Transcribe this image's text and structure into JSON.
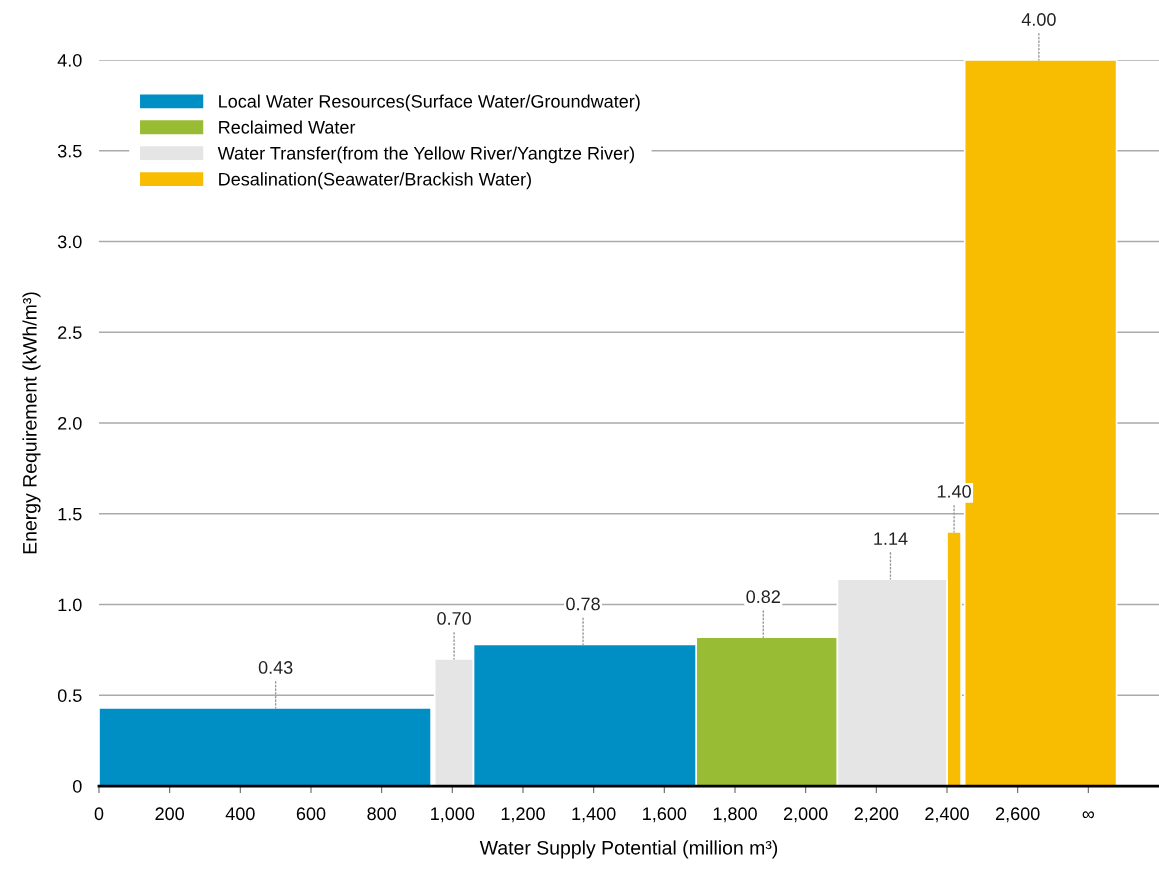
{
  "chart_data": {
    "type": "area",
    "xlabel": "Water Supply Potential (million m³)",
    "ylabel": "Energy Requirement (kWh/m³)",
    "series": [
      {
        "name": "Local Water Resources(Surface Water/Groundwater)",
        "color": "#008fc4",
        "x": [
          0,
          940
        ],
        "values": [
          0.43,
          0.43
        ]
      },
      {
        "name": "Reclaimed Water",
        "color": "#98bd35",
        "x": [
          1690,
          2090
        ],
        "values": [
          0.82,
          0.82
        ]
      },
      {
        "name": "Water Transfer(from the Yellow River/Yangtze River)",
        "color": "#e5e5e5",
        "x": [
          950,
          1060
        ],
        "values": [
          0.7,
          0.7
        ]
      },
      {
        "name": "Desalination(Seawater/Brackish Water)",
        "color": "#f8bd00",
        "x": [
          2400,
          2440
        ],
        "values": [
          1.4,
          1.4
        ]
      },
      {
        "color": "#008fc4",
        "x": [
          1060,
          1690
        ],
        "values": [
          0.78,
          0.78
        ]
      },
      {
        "color": "#e5e5e5",
        "x": [
          2090,
          2400
        ],
        "values": [
          1.14,
          1.14
        ]
      },
      {
        "color": "#f8bd00",
        "x": [
          2450,
          2880
        ],
        "values": [
          4.0,
          4.0
        ]
      }
    ],
    "annotations": [
      {
        "text": "0.43",
        "x": 500,
        "y": 0.43
      },
      {
        "text": "0.70",
        "x": 1005,
        "y": 0.7
      },
      {
        "text": "0.78",
        "x": 1370,
        "y": 0.78
      },
      {
        "text": "0.82",
        "x": 1880,
        "y": 0.82
      },
      {
        "text": "1.14",
        "x": 2240,
        "y": 1.14
      },
      {
        "text": "1.40",
        "x": 2420,
        "y": 1.4
      },
      {
        "text": "4.00",
        "x": 2660,
        "y": 4.0
      }
    ],
    "xlim": [
      0,
      3000
    ],
    "xticks": [
      0,
      200,
      400,
      600,
      800,
      {
        "value": 1000,
        "label": "1,000"
      },
      {
        "value": 1200,
        "label": "1,200"
      },
      {
        "value": 1400,
        "label": "1,400"
      },
      {
        "value": 1600,
        "label": "1,600"
      },
      {
        "value": 1800,
        "label": "1,800"
      },
      {
        "value": 2000,
        "label": "2,000"
      },
      {
        "value": 2200,
        "label": "2,200"
      },
      {
        "value": 2400,
        "label": "2,400"
      },
      {
        "value": 2600,
        "label": "2,600"
      },
      {
        "value": 2800,
        "label": "∞"
      }
    ],
    "ylim": [
      0,
      4.0
    ],
    "yticks": [
      0,
      0.5,
      {
        "value": 1.0,
        "label": "1.0"
      },
      1.5,
      {
        "value": 2.0,
        "label": "2.0"
      },
      2.5,
      {
        "value": 3.0,
        "label": "3.0"
      },
      3.5,
      {
        "value": 4.0,
        "label": "4.0"
      }
    ],
    "grid": "y",
    "legend": "top left"
  }
}
